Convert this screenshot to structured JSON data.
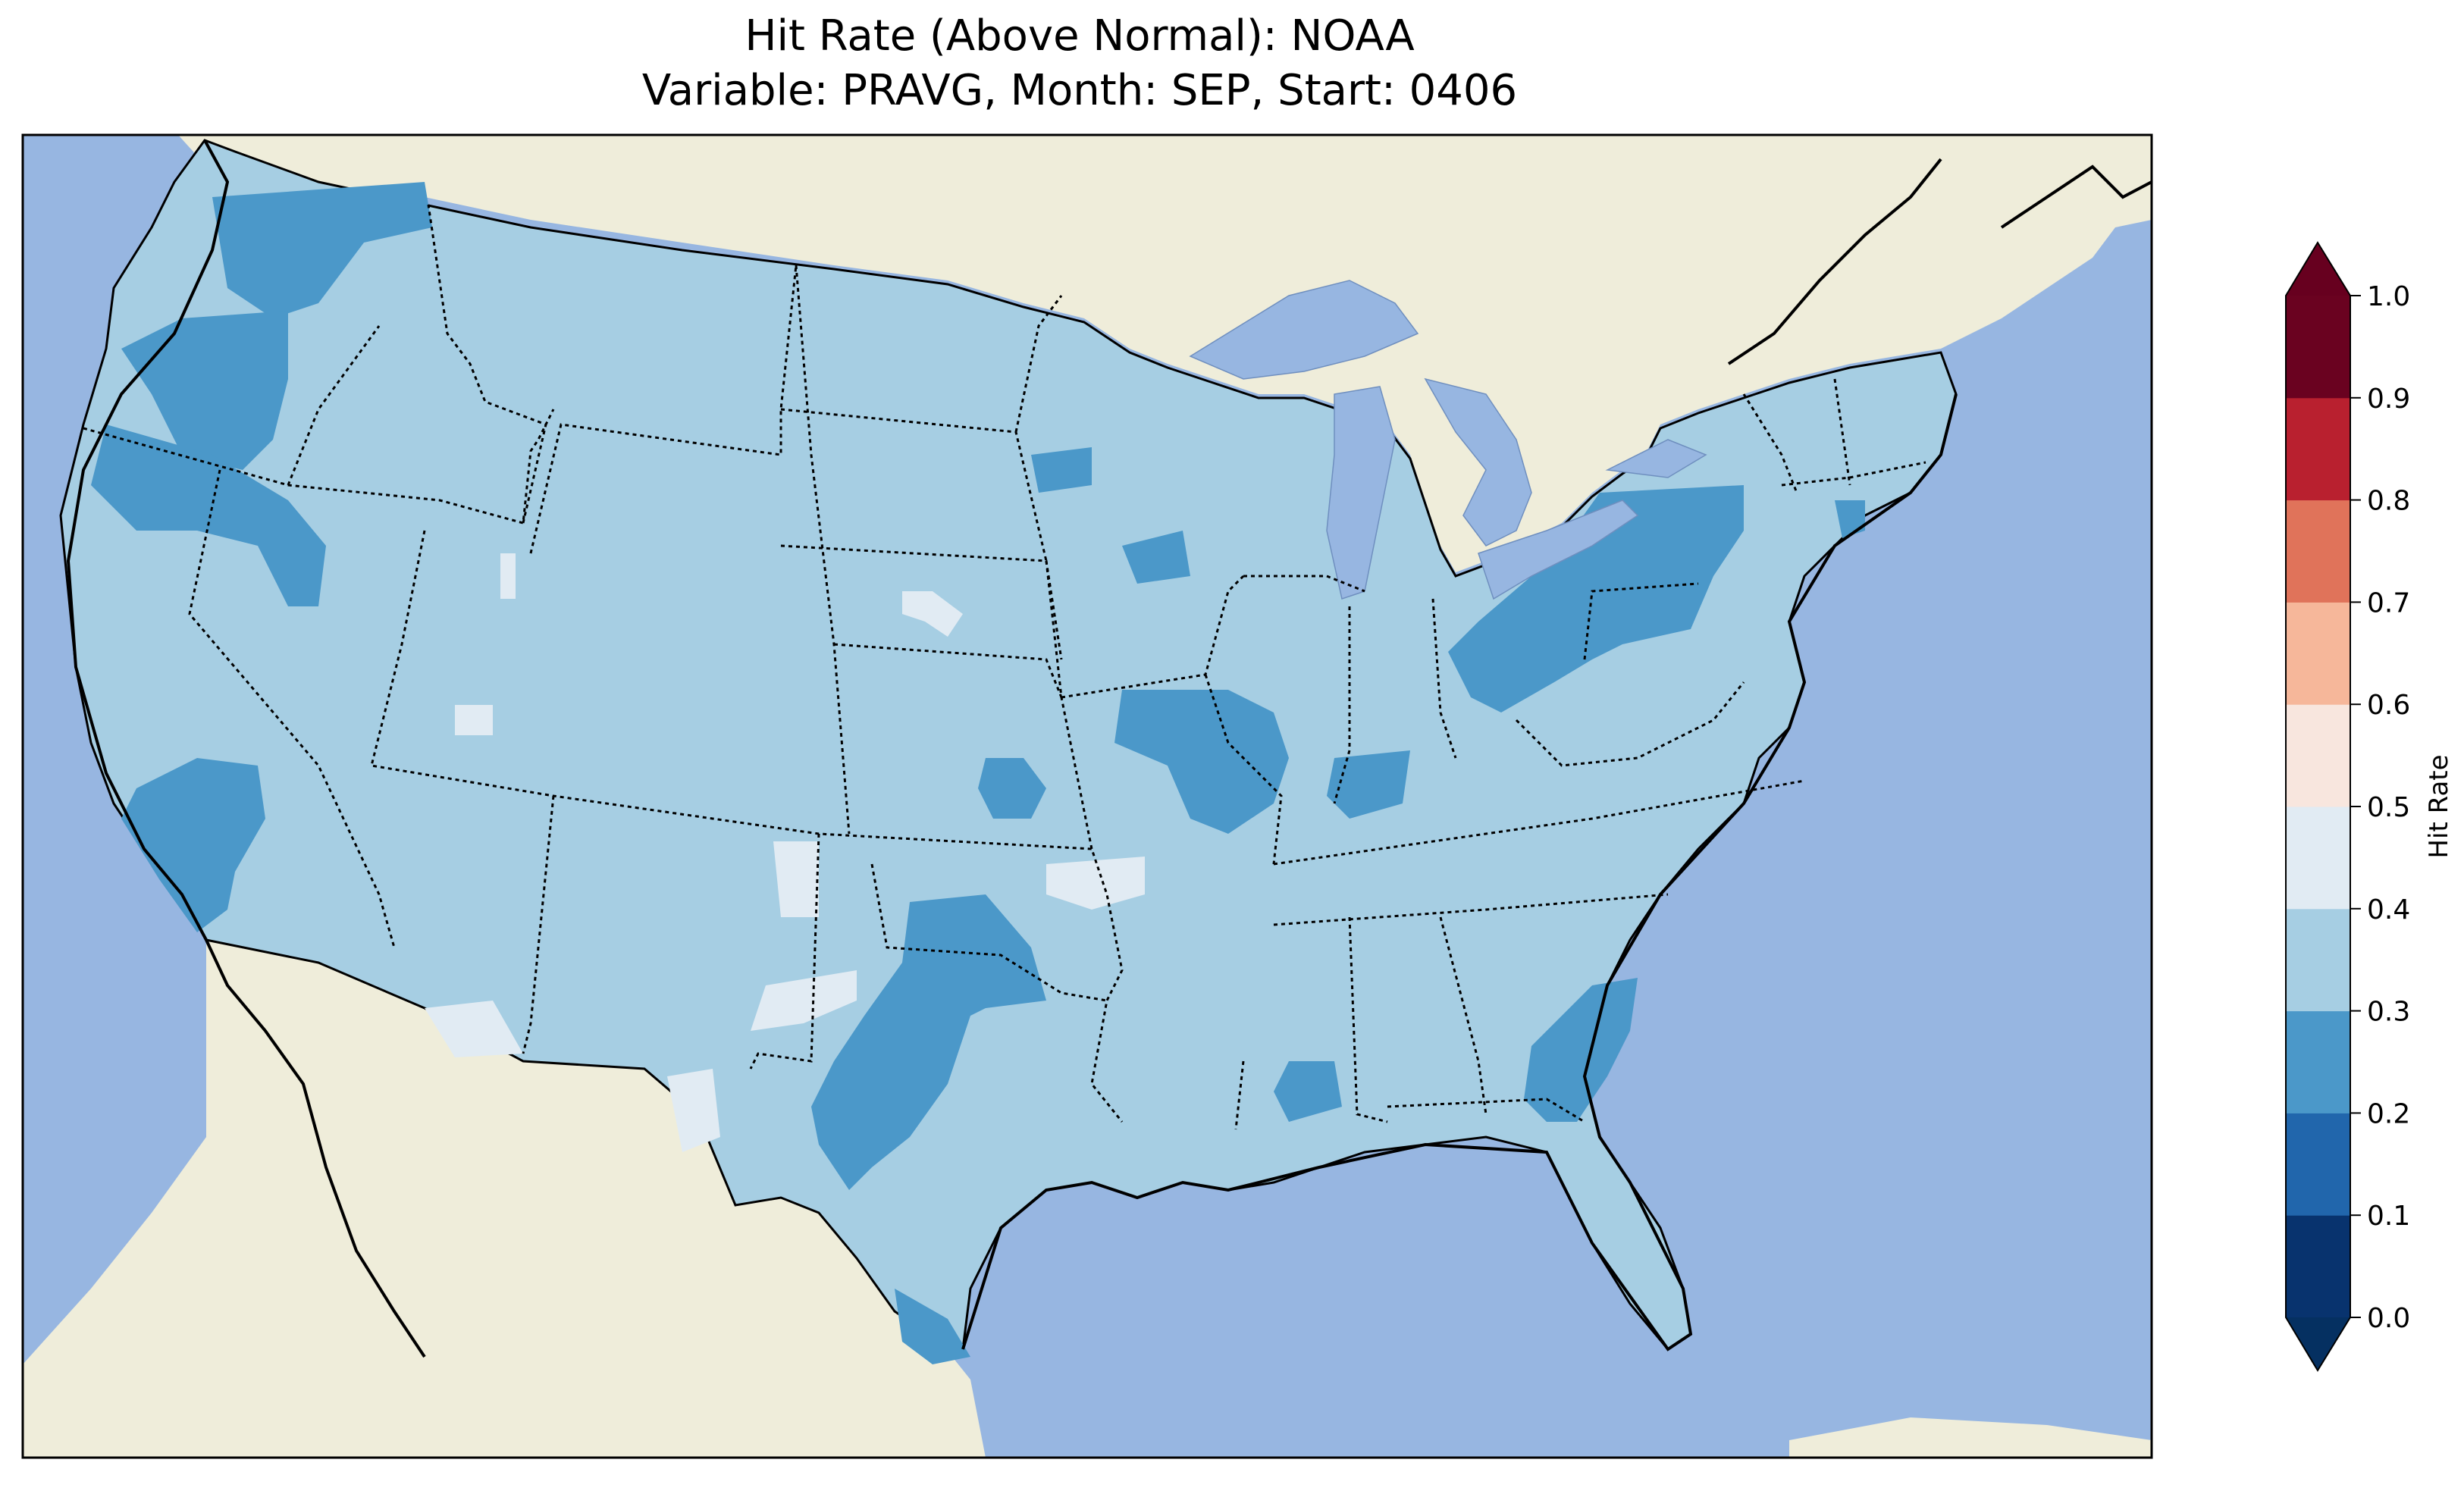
{
  "title": {
    "line1": "Hit Rate (Above Normal): NOAA",
    "line2": "Variable: PRAVG, Month: SEP, Start: 0406"
  },
  "map": {
    "extent": "Contiguous United States",
    "ocean_color": "#97b6e1",
    "land_color": "#efedda",
    "dominant_class": "0.3–0.4",
    "regions": [
      {
        "area": "Pacific Northwest coast",
        "class": "0.2–0.3"
      },
      {
        "area": "Southern California",
        "class": "0.2–0.3"
      },
      {
        "area": "Central Texas",
        "class": "0.2–0.3"
      },
      {
        "area": "Oklahoma",
        "class": "0.2–0.3"
      },
      {
        "area": "Missouri",
        "class": "0.2–0.3"
      },
      {
        "area": "Ohio / Pennsylvania",
        "class": "0.2–0.3"
      },
      {
        "area": "Georgia / South Carolina",
        "class": "0.2–0.3"
      },
      {
        "area": "Nebraska",
        "class": "0.4–0.5"
      },
      {
        "area": "Texas panhandle / New Mexico border",
        "class": "0.4–0.5"
      },
      {
        "area": "Arizona / Mexico border",
        "class": "0.4–0.5"
      }
    ]
  },
  "colorbar": {
    "label": "Hit Rate",
    "ticks": [
      "0.0",
      "0.1",
      "0.2",
      "0.3",
      "0.4",
      "0.5",
      "0.6",
      "0.7",
      "0.8",
      "0.9",
      "1.0"
    ],
    "min": 0.0,
    "max": 1.0,
    "extend": "both",
    "under_color": "#053061",
    "over_color": "#67001f",
    "colors": [
      "#053061",
      "#2166ac",
      "#4393c3",
      "#92c5de",
      "#d1e5f0",
      "#f7f7f7",
      "#fddbc7",
      "#f4a582",
      "#d6604d",
      "#b2182b",
      "#67001f"
    ],
    "bin_colors": [
      "#08336e",
      "#2166ac",
      "#4b98c9",
      "#a6cee3",
      "#e1ebf3",
      "#f8e6de",
      "#f6b79a",
      "#e0735a",
      "#b9202f",
      "#6a0220"
    ]
  }
}
